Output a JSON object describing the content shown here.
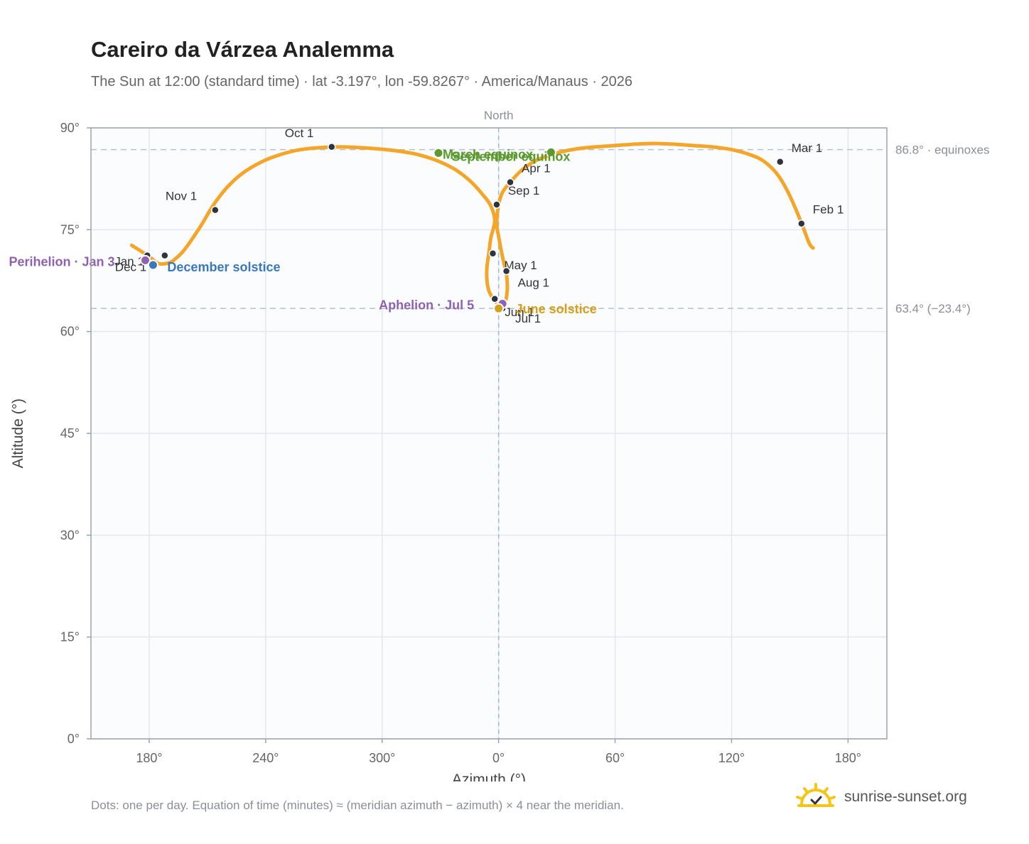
{
  "title": "Careiro da Várzea Analemma",
  "subtitle": "The Sun at 12:00 (standard time) · lat -3.197°, lon -59.8267° · America/Manaus · 2026",
  "footnote": "Dots: one per day. Equation of time (minutes) ≈ (meridian azimuth − azimuth) × 4 near the meridian.",
  "brand": {
    "name": "sunrise-sunset.org",
    "icon": "sun-logo-icon",
    "color": "#f5c518"
  },
  "chart_data": {
    "type": "scatter",
    "xlabel": "Azimuth (°)",
    "ylabel": "Altitude (°)",
    "xlim": [
      150,
      560
    ],
    "ylim": [
      0,
      90
    ],
    "x_ticks": [
      {
        "value": 180,
        "label": "180°"
      },
      {
        "value": 240,
        "label": "240°"
      },
      {
        "value": 300,
        "label": "300°"
      },
      {
        "value": 360,
        "label": "0°"
      },
      {
        "value": 420,
        "label": "60°"
      },
      {
        "value": 480,
        "label": "120°"
      },
      {
        "value": 540,
        "label": "180°"
      }
    ],
    "y_ticks": [
      {
        "value": 0,
        "label": "0°"
      },
      {
        "value": 15,
        "label": "15°"
      },
      {
        "value": 30,
        "label": "30°"
      },
      {
        "value": 45,
        "label": "45°"
      },
      {
        "value": 60,
        "label": "60°"
      },
      {
        "value": 75,
        "label": "75°"
      },
      {
        "value": 90,
        "label": "90°"
      }
    ],
    "grid": true,
    "meridian": {
      "x": 360,
      "label": "North"
    },
    "reference_lines": [
      {
        "y": 86.8,
        "label": "86.8° · equinoxes"
      },
      {
        "y": 63.4,
        "label": "63.4° (−23.4°)"
      }
    ],
    "path_color": "#f4a62a",
    "path_points": [
      [
        171,
        72.7
      ],
      [
        176,
        71.8
      ],
      [
        181,
        70.8
      ],
      [
        185,
        70.0
      ],
      [
        190,
        70.1
      ],
      [
        193,
        70.6
      ],
      [
        198,
        72.0
      ],
      [
        206,
        75.3
      ],
      [
        213,
        78.6
      ],
      [
        220,
        81.2
      ],
      [
        228,
        83.3
      ],
      [
        238,
        85.0
      ],
      [
        248,
        86.1
      ],
      [
        258,
        86.8
      ],
      [
        268,
        87.1
      ],
      [
        278,
        87.2
      ],
      [
        288,
        87.1
      ],
      [
        298,
        86.9
      ],
      [
        308,
        86.6
      ],
      [
        318,
        86.1
      ],
      [
        328,
        85.2
      ],
      [
        338,
        83.8
      ],
      [
        346,
        82.0
      ],
      [
        352,
        80.1
      ],
      [
        356,
        78.5
      ],
      [
        358,
        76.3
      ],
      [
        356,
        73.8
      ],
      [
        355,
        71.6
      ],
      [
        354,
        69.5
      ],
      [
        354,
        67.5
      ],
      [
        355,
        66.0
      ],
      [
        357,
        64.9
      ],
      [
        359,
        64.2
      ],
      [
        360,
        63.5
      ],
      [
        361,
        63.5
      ],
      [
        363,
        64.0
      ],
      [
        364,
        65.0
      ],
      [
        364.5,
        66.5
      ],
      [
        364,
        68.5
      ],
      [
        362,
        71.0
      ],
      [
        360,
        74.0
      ],
      [
        359,
        76.0
      ],
      [
        360,
        78.7
      ],
      [
        362,
        80.5
      ],
      [
        366,
        82.0
      ],
      [
        372,
        83.8
      ],
      [
        380,
        85.3
      ],
      [
        390,
        86.3
      ],
      [
        400,
        86.9
      ],
      [
        410,
        87.2
      ],
      [
        420,
        87.4
      ],
      [
        430,
        87.6
      ],
      [
        440,
        87.7
      ],
      [
        450,
        87.6
      ],
      [
        460,
        87.4
      ],
      [
        470,
        87.2
      ],
      [
        480,
        86.8
      ],
      [
        490,
        86.0
      ],
      [
        497,
        85.0
      ],
      [
        504,
        83.0
      ],
      [
        510,
        80.0
      ],
      [
        516,
        76.0
      ],
      [
        520,
        73.0
      ],
      [
        522,
        72.3
      ]
    ],
    "month_points": [
      {
        "label": "Jan 1",
        "x": 179,
        "y": 71.2,
        "dx": -46,
        "dy": 14
      },
      {
        "label": "Feb 1",
        "x": 516,
        "y": 75.9,
        "dx": 16,
        "dy": -14
      },
      {
        "label": "Mar 1",
        "x": 505,
        "y": 85.0,
        "dx": 16,
        "dy": -14
      },
      {
        "label": "Apr 1",
        "x": 366,
        "y": 82.0,
        "dx": 16,
        "dy": -14
      },
      {
        "label": "May 1",
        "x": 357,
        "y": 71.5,
        "dx": 16,
        "dy": 22
      },
      {
        "label": "Jun 1",
        "x": 358,
        "y": 64.8,
        "dx": 14,
        "dy": 24
      },
      {
        "label": "Jul 1",
        "x": 362,
        "y": 63.4,
        "dx": 18,
        "dy": 20
      },
      {
        "label": "Aug 1",
        "x": 364,
        "y": 68.9,
        "dx": 16,
        "dy": 22
      },
      {
        "label": "Sep 1",
        "x": 359,
        "y": 78.7,
        "dx": 16,
        "dy": -14
      },
      {
        "label": "Oct 1",
        "x": 274,
        "y": 87.2,
        "dx": -66,
        "dy": -14
      },
      {
        "label": "Nov 1",
        "x": 214,
        "y": 77.9,
        "dx": -70,
        "dy": -14
      },
      {
        "label": "Dec 1",
        "x": 188,
        "y": 71.2,
        "dx": -70,
        "dy": 22
      }
    ],
    "events": [
      {
        "label": "Perihelion · Jan 3",
        "x": 178,
        "y": 70.5,
        "color": "#8e62b0",
        "dx": -192,
        "dy": 8
      },
      {
        "label": "December solstice",
        "x": 182,
        "y": 69.8,
        "color": "#3a78b8",
        "dx": 20,
        "dy": 9
      },
      {
        "label": "March equinox",
        "x": 329,
        "y": 86.3,
        "color": "#5a9a2e",
        "dx": 6,
        "dy": 8
      },
      {
        "label": "September equinox",
        "x": 387,
        "y": 86.4,
        "color": "#5a9a2e",
        "dx": -140,
        "dy": 12
      },
      {
        "label": "Aphelion · Jul 5",
        "x": 362,
        "y": 64.1,
        "color": "#8e62b0",
        "dx": -174,
        "dy": 8
      },
      {
        "label": "June solstice",
        "x": 360,
        "y": 63.4,
        "color": "#d4a01c",
        "dx": 24,
        "dy": 7
      }
    ]
  }
}
